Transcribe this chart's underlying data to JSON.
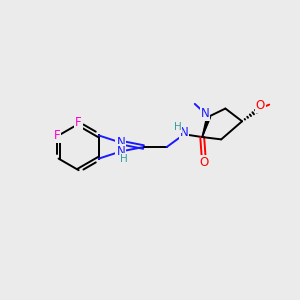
{
  "bg_color": "#ebebeb",
  "atom_colors": {
    "C": "#000000",
    "N": "#1a1aff",
    "O": "#ff0000",
    "F": "#ff00cc",
    "H_label": "#2fa0a0"
  },
  "bond_lw": 1.4,
  "font_size": 8.5
}
